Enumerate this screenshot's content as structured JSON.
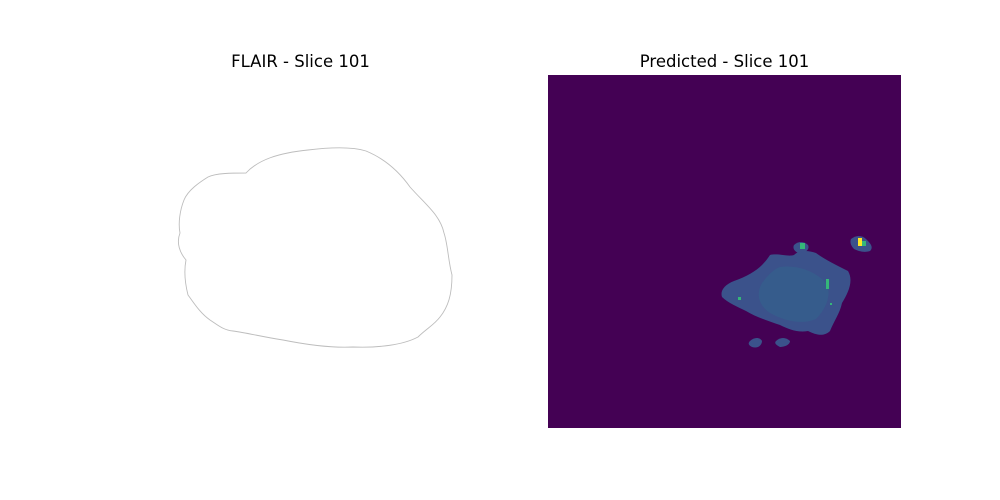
{
  "figure": {
    "left_title": "FLAIR - Slice 101",
    "right_title": "Predicted - Slice 101"
  },
  "colors": {
    "background": "#ffffff",
    "brain_outline": "#bdbdbd",
    "prediction_background": "#440154",
    "prediction_region": "#3b528b",
    "prediction_region_light": "#31688e",
    "prediction_hotspot_green": "#35b779",
    "prediction_hotspot_yellow": "#fde725"
  }
}
